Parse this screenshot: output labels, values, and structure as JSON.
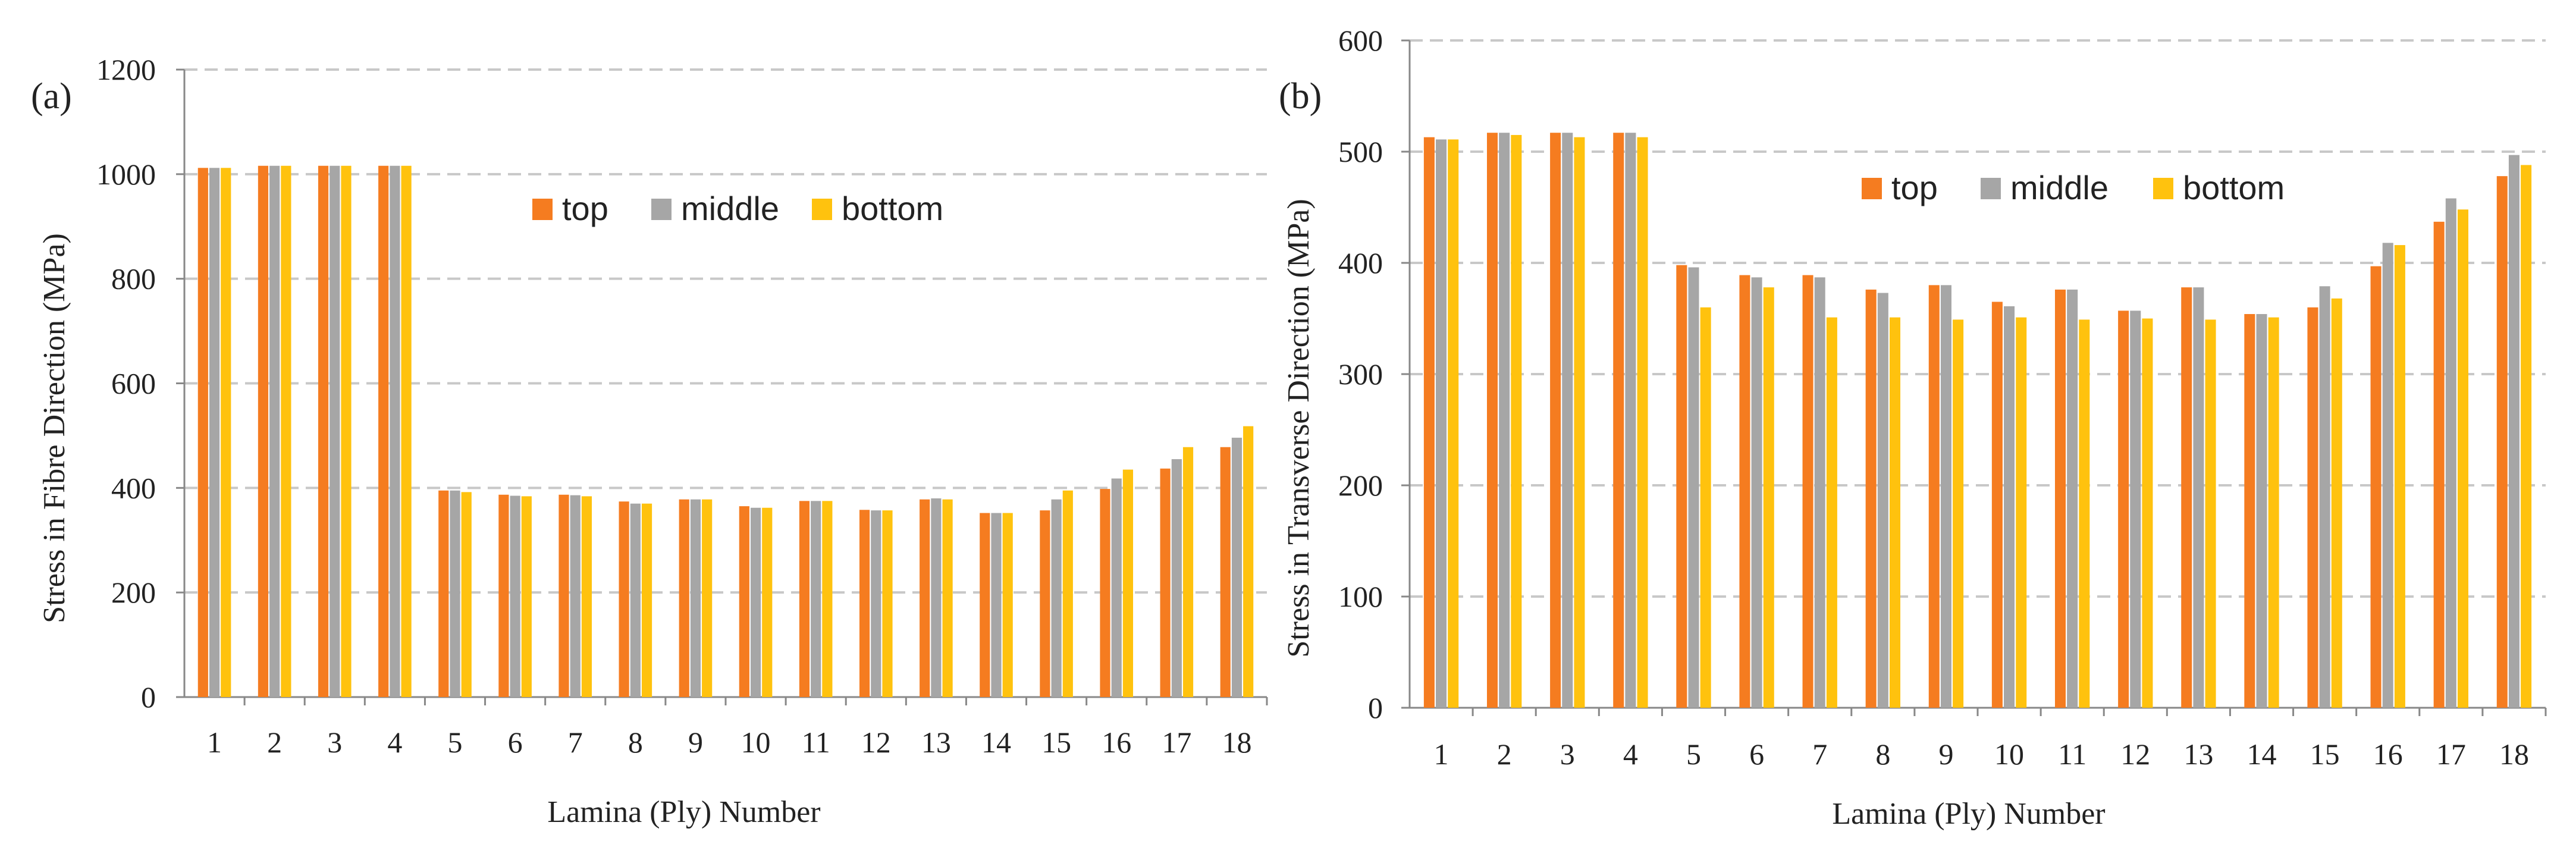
{
  "colors": {
    "top": "#f57c20",
    "middle": "#a6a6a6",
    "bottom": "#ffc20e"
  },
  "chart_data": [
    {
      "type": "bar",
      "panel_label": "(a)",
      "title": "",
      "xlabel": "Lamina (Ply) Number",
      "ylabel": "Stress in Fibre Direction (MPa)",
      "ylim": [
        0,
        1200
      ],
      "yticks": [
        0,
        200,
        400,
        600,
        800,
        1000,
        1200
      ],
      "grid": true,
      "legend_position": "top-center",
      "categories": [
        "1",
        "2",
        "3",
        "4",
        "5",
        "6",
        "7",
        "8",
        "9",
        "10",
        "11",
        "12",
        "13",
        "14",
        "15",
        "16",
        "17",
        "18"
      ],
      "series": [
        {
          "name": "top",
          "values": [
            1012,
            1016,
            1016,
            1016,
            395,
            387,
            387,
            374,
            378,
            365,
            375,
            358,
            378,
            352,
            357,
            398,
            437,
            478
          ]
        },
        {
          "name": "middle",
          "values": [
            1012,
            1016,
            1016,
            1016,
            395,
            385,
            386,
            370,
            378,
            362,
            375,
            357,
            380,
            352,
            378,
            418,
            455,
            496
          ]
        },
        {
          "name": "bottom",
          "values": [
            1012,
            1016,
            1016,
            1016,
            392,
            384,
            384,
            370,
            378,
            362,
            375,
            357,
            378,
            352,
            395,
            435,
            478,
            518
          ]
        }
      ]
    },
    {
      "type": "bar",
      "panel_label": "(b)",
      "title": "",
      "xlabel": "Lamina (Ply) Number",
      "ylabel": "Stress in Transverse Direction (MPa)",
      "ylim": [
        0,
        600
      ],
      "yticks": [
        0,
        100,
        200,
        300,
        400,
        500,
        600
      ],
      "grid": true,
      "legend_position": "top-center",
      "categories": [
        "1",
        "2",
        "3",
        "4",
        "5",
        "6",
        "7",
        "8",
        "9",
        "10",
        "11",
        "12",
        "13",
        "14",
        "15",
        "16",
        "17",
        "18"
      ],
      "series": [
        {
          "name": "top",
          "values": [
            513,
            517,
            517,
            517,
            398,
            389,
            389,
            376,
            380,
            365,
            376,
            357,
            378,
            354,
            360,
            397,
            437,
            478
          ]
        },
        {
          "name": "middle",
          "values": [
            511,
            517,
            517,
            517,
            396,
            387,
            387,
            373,
            380,
            361,
            376,
            357,
            378,
            354,
            379,
            418,
            458,
            497
          ]
        },
        {
          "name": "bottom",
          "values": [
            511,
            515,
            513,
            513,
            360,
            378,
            351,
            351,
            349,
            351,
            349,
            350,
            349,
            351,
            368,
            416,
            448,
            488
          ]
        }
      ]
    }
  ]
}
